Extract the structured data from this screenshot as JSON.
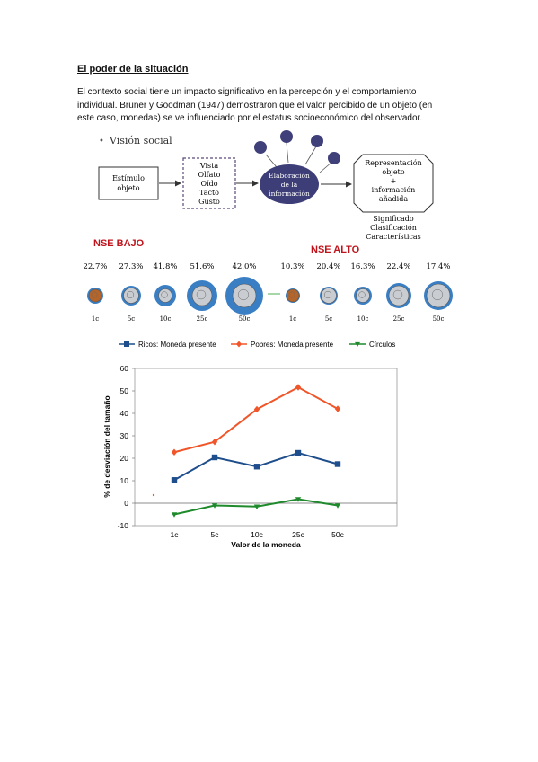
{
  "heading": "El poder de la situación",
  "paragraph": [
    "El contexto social tiene un impacto significativo en la percepción y el comportamiento",
    "individual. Bruner y Goodman (1947) demostraron que el valor percibido de un objeto (en",
    "este caso, monedas) se ve influenciado por el estatus socioeconómico del observador."
  ],
  "diagram": {
    "bullet_title": "Visión social",
    "stimulus": [
      "Estímulo",
      "objeto"
    ],
    "senses": [
      "Vista",
      "Olfato",
      "Oído",
      "Tacto",
      "Gusto"
    ],
    "elaboration": [
      "Elaboración",
      "de la",
      "información"
    ],
    "representation": [
      "Representación",
      "objeto",
      "+",
      "información",
      "añadida"
    ],
    "outcomes": [
      "Significado",
      "Clasificación",
      "Características"
    ]
  },
  "coins": {
    "low_label": "NSE BAJO",
    "high_label": "NSE ALTO",
    "low_pcts": [
      "22.7%",
      "27.3%",
      "41.8%",
      "51.6%",
      "42.0%"
    ],
    "high_pcts": [
      "10.3%",
      "20.4%",
      "16.3%",
      "22.4%",
      "17.4%"
    ],
    "denoms": [
      "1c",
      "5c",
      "10c",
      "25c",
      "50c"
    ],
    "colors": {
      "label_red": "#c0141c",
      "halo": "#3a7fc4",
      "copper": "#b5652a",
      "silver": "#c9ccd0"
    }
  },
  "chart_data": {
    "type": "line",
    "categories": [
      "1c",
      "5c",
      "10c",
      "25c",
      "50c"
    ],
    "series": [
      {
        "name": "Ricos: Moneda presente",
        "values": [
          10.3,
          20.4,
          16.3,
          22.4,
          17.4
        ],
        "color": "#1f4e8c",
        "marker": "square"
      },
      {
        "name": "Pobres: Moneda presente",
        "values": [
          22.7,
          27.3,
          41.8,
          51.6,
          42.0
        ],
        "color": "#f0562a",
        "marker": "diamond"
      },
      {
        "name": "Círculos",
        "values": [
          -5,
          -1,
          -1.5,
          1.8,
          -1
        ],
        "color": "#1f8a2c",
        "marker": "triangle"
      }
    ],
    "xlabel": "Valor de la moneda",
    "ylabel": "% de desviación del tamaño",
    "yticks": [
      "-10",
      "0",
      "10",
      "20",
      "30",
      "40",
      "50",
      "60"
    ],
    "ylim": [
      -10,
      60
    ],
    "legend_position": "top"
  }
}
